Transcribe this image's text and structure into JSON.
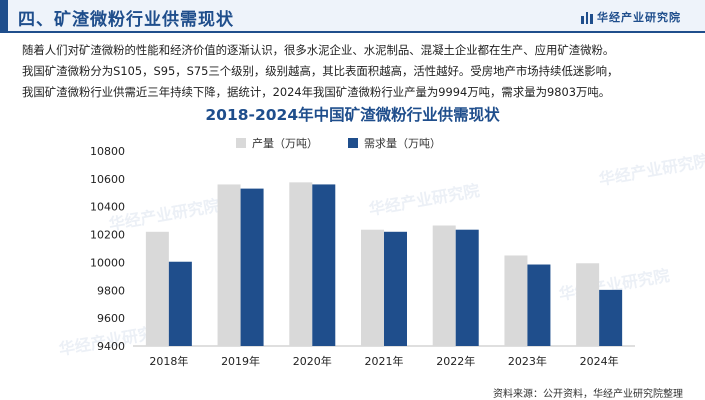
{
  "header": {
    "title": "四、矿渣微粉行业供需现状",
    "brand_name": "华经产业研究院"
  },
  "description_lines": [
    "随着人们对矿渣微粉的性能和经济价值的逐渐认识，很多水泥企业、水泥制品、混凝土企业都在生产、应用矿渣微粉。",
    "我国矿渣微粉分为S105，S95，S75三个级别，级别越高，其比表面积越高，活性越好。受房地产市场持续低迷影响，",
    "我国矿渣微粉行业供需近三年持续下降，据统计，2024年我国矿渣微粉行业产量为9994万吨，需求量为9803万吨。"
  ],
  "watermark_text": "华经产业研究院",
  "source": "资料来源：公开资料，华经产业研究院整理",
  "colors": {
    "accent": "#1f4e8c",
    "production": "#d9d9d9",
    "demand": "#1f4e8c"
  },
  "chart_data": {
    "type": "bar",
    "title": "2018-2024年中国矿渣微粉行业供需现状",
    "categories": [
      "2018年",
      "2019年",
      "2020年",
      "2021年",
      "2022年",
      "2023年",
      "2024年"
    ],
    "series": [
      {
        "name": "产量（万吨）",
        "values": [
          10220,
          10560,
          10575,
          10235,
          10265,
          10050,
          9994
        ]
      },
      {
        "name": "需求量（万吨）",
        "values": [
          10005,
          10530,
          10560,
          10220,
          10235,
          9985,
          9803
        ]
      }
    ],
    "ylim": [
      9400,
      10800
    ],
    "yticks": [
      9400,
      9600,
      9800,
      10000,
      10200,
      10400,
      10600,
      10800
    ],
    "grid": false,
    "legend": "top-center",
    "xlabel": "",
    "ylabel": ""
  }
}
